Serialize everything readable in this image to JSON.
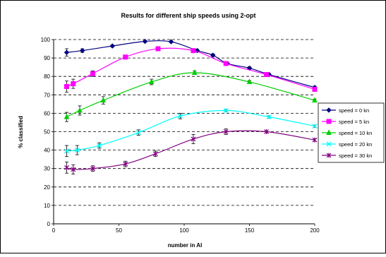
{
  "chart_data": {
    "type": "line",
    "title": "Results for different ship speeds using 2-opt",
    "xlabel": "number in AI",
    "ylabel": "% classified",
    "xlim": [
      0,
      200
    ],
    "ylim": [
      0,
      100
    ],
    "xticks": [
      0,
      50,
      100,
      150,
      200
    ],
    "yticks": [
      0,
      10,
      20,
      30,
      40,
      50,
      60,
      70,
      80,
      90,
      100
    ],
    "grid": "horizontal dashed",
    "legend_position": "right",
    "series": [
      {
        "name": "speed = 0 kn",
        "color": "#000080",
        "marker": "diamond",
        "points": [
          [
            10,
            93
          ],
          [
            22,
            94
          ],
          [
            45,
            96.5
          ],
          [
            70,
            99
          ],
          [
            90,
            98.8
          ],
          [
            110,
            94
          ],
          [
            122,
            91.5
          ],
          [
            133,
            87
          ],
          [
            150,
            84.5
          ],
          [
            165,
            81
          ],
          [
            200,
            74
          ]
        ],
        "errors": [
          2,
          1,
          0.5,
          0.5,
          0.5,
          0.7,
          0.7,
          0.7,
          0.7,
          0.7,
          0.7
        ]
      },
      {
        "name": "speed = 5 kn",
        "color": "#ff00ff",
        "marker": "square",
        "points": [
          [
            10,
            74.5
          ],
          [
            15,
            76
          ],
          [
            30,
            81.5
          ],
          [
            55,
            90.5
          ],
          [
            80,
            95
          ],
          [
            107,
            94
          ],
          [
            132,
            87
          ],
          [
            163,
            81
          ],
          [
            200,
            73
          ]
        ],
        "errors": [
          3,
          2.5,
          1.5,
          1,
          0.6,
          0.6,
          0.6,
          0.6,
          0.6
        ]
      },
      {
        "name": "speed = 10 kn",
        "color": "#00cc00",
        "marker": "triangle",
        "points": [
          [
            10,
            58
          ],
          [
            20,
            61.5
          ],
          [
            38,
            67
          ],
          [
            75,
            77
          ],
          [
            108,
            82
          ],
          [
            150,
            77
          ],
          [
            200,
            67
          ]
        ],
        "errors": [
          2.5,
          2.5,
          2,
          1.5,
          1,
          0.7,
          0.7
        ]
      },
      {
        "name": "speed = 20 kn",
        "color": "#00ffff",
        "marker": "x",
        "points": [
          [
            10,
            39.5
          ],
          [
            18,
            40
          ],
          [
            35,
            42.5
          ],
          [
            65,
            49.5
          ],
          [
            97,
            58.5
          ],
          [
            132,
            61.5
          ],
          [
            165,
            58
          ],
          [
            200,
            53
          ]
        ],
        "errors": [
          3,
          2.5,
          1.5,
          1.5,
          1.5,
          0.6,
          0.6,
          0.6
        ]
      },
      {
        "name": "speed = 30 kn",
        "color": "#800080",
        "marker": "star",
        "points": [
          [
            10,
            30.5
          ],
          [
            15,
            29.5
          ],
          [
            30,
            30
          ],
          [
            55,
            32.5
          ],
          [
            78,
            38
          ],
          [
            107,
            46
          ],
          [
            132,
            50
          ],
          [
            163,
            50
          ],
          [
            200,
            45.5
          ]
        ],
        "errors": [
          3,
          2.5,
          1.5,
          1.5,
          1.5,
          2.5,
          1.5,
          0.6,
          0.6
        ]
      }
    ]
  }
}
